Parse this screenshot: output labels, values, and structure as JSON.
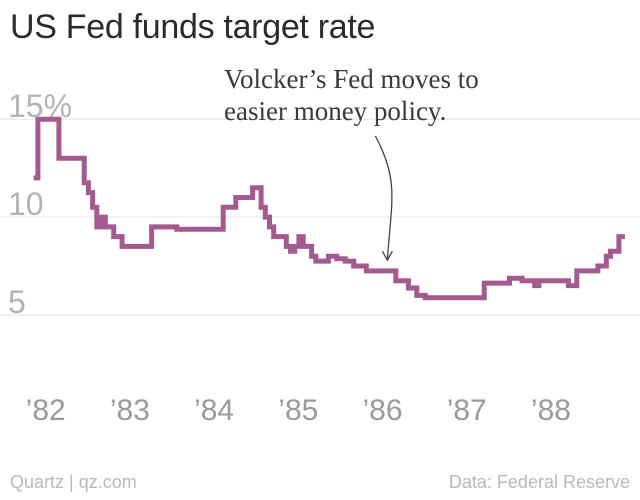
{
  "chart_data": {
    "type": "line",
    "title": "US Fed funds target rate",
    "xlabel": "",
    "ylabel": "",
    "y_ticks": [
      {
        "value": 15,
        "label": "15%"
      },
      {
        "value": 10,
        "label": "10"
      },
      {
        "value": 5,
        "label": "5"
      }
    ],
    "x_ticks": [
      {
        "value": 1982.0,
        "label": "’82"
      },
      {
        "value": 1983.0,
        "label": "’83"
      },
      {
        "value": 1984.0,
        "label": "’84"
      },
      {
        "value": 1985.0,
        "label": "’85"
      },
      {
        "value": 1986.0,
        "label": "’86"
      },
      {
        "value": 1987.0,
        "label": "’87"
      },
      {
        "value": 1988.0,
        "label": "’88"
      }
    ],
    "xlim": [
      1981.6,
      1989.2
    ],
    "ylim": [
      2.7,
      17.0
    ],
    "grid": true,
    "line_color": "#a45a8e",
    "series": [
      {
        "name": "",
        "step": true,
        "x": [
          1982.0,
          1982.05,
          1982.3,
          1982.6,
          1982.65,
          1982.7,
          1982.75,
          1982.8,
          1982.85,
          1982.95,
          1983.05,
          1983.4,
          1983.7,
          1984.25,
          1984.4,
          1984.6,
          1984.7,
          1984.75,
          1984.8,
          1984.85,
          1985.0,
          1985.05,
          1985.1,
          1985.15,
          1985.2,
          1985.3,
          1985.35,
          1985.5,
          1985.6,
          1985.7,
          1985.8,
          1985.95,
          1986.3,
          1986.45,
          1986.55,
          1986.65,
          1986.8,
          1987.35,
          1987.65,
          1987.8,
          1987.95,
          1988.0,
          1988.35,
          1988.45,
          1988.7,
          1988.8,
          1988.85
        ],
        "y": [
          12.0,
          15.0,
          13.0,
          11.75,
          11.25,
          10.5,
          9.5,
          10.0,
          9.5,
          9.0,
          8.5,
          9.5,
          9.375,
          10.5,
          11.0,
          11.5,
          10.5,
          10.0,
          9.5,
          9.0,
          8.5,
          8.25,
          8.5,
          9.0,
          8.5,
          8.0,
          7.75,
          8.0,
          7.875,
          7.75,
          7.5,
          7.25,
          6.75,
          6.375,
          6.0,
          5.875,
          5.875,
          6.625,
          6.875,
          6.75,
          6.5,
          6.75,
          6.5,
          7.25,
          7.5,
          8.0,
          8.25
        ],
        "end_x": 1988.95,
        "end_y": 9.0
      }
    ],
    "annotation": {
      "lines": [
        "Volcker’s Fed moves to",
        "easier money policy."
      ],
      "target_x": 1986.2,
      "target_y": 7.8
    },
    "source_left": "Quartz | qz.com",
    "source_right": "Data: Federal Reserve"
  }
}
